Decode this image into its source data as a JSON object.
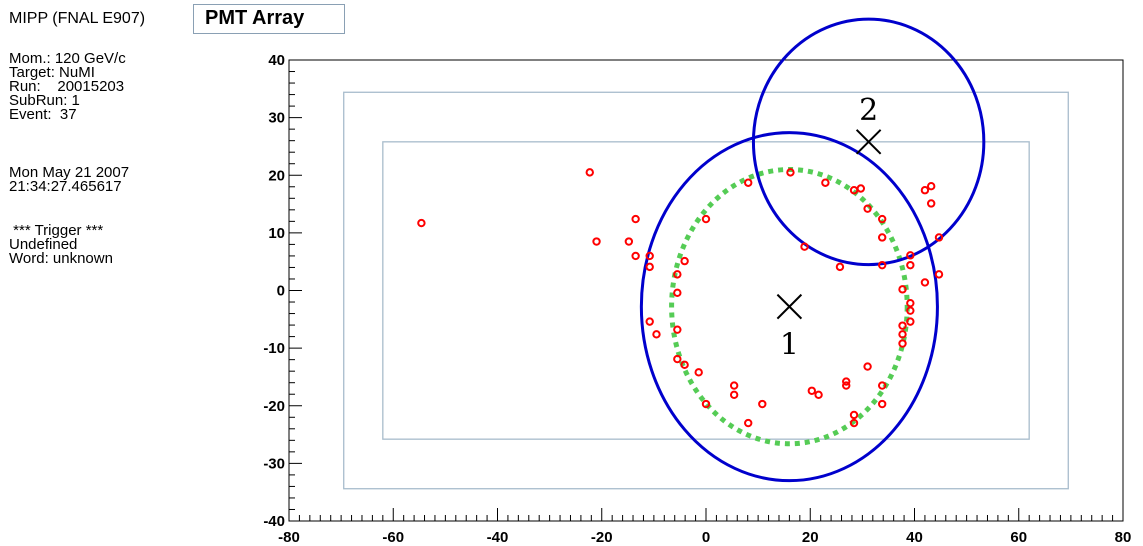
{
  "header": {
    "experiment": "MIPP (FNAL E907)",
    "title": "PMT Array"
  },
  "info": {
    "momentum": "Mom.: 120 GeV/c",
    "target": "Target: NuMI",
    "run": "Run:    20015203",
    "subrun": "SubRun: 1",
    "event": "Event:  37",
    "date": "Mon May 21 2007",
    "time": "21:34:27.465617",
    "trigger_title": " *** Trigger ***",
    "trigger_line1": "Undefined",
    "trigger_line2": "Word: unknown"
  },
  "colors": {
    "hits": "#ff0000",
    "rings": "#0000cc",
    "fit_ring": "#55cc55",
    "boxes": "#a8bccc"
  },
  "chart_data": {
    "type": "scatter",
    "title": "PMT Array",
    "xlim": [
      -80,
      80
    ],
    "ylim": [
      -40,
      40
    ],
    "xticks": [
      -80,
      -60,
      -40,
      -20,
      0,
      20,
      40,
      60,
      80
    ],
    "yticks": [
      -40,
      -30,
      -20,
      -10,
      0,
      10,
      20,
      30,
      40
    ],
    "xtick_labels": [
      "-80",
      "-60",
      "-40",
      "-20",
      "0",
      "20",
      "40",
      "60",
      "80"
    ],
    "ytick_labels": [
      "-40",
      "-30",
      "-20",
      "-10",
      "0",
      "10",
      "20",
      "30",
      "40"
    ],
    "outer_box": {
      "x": [
        -69.5,
        69.5
      ],
      "y": [
        -34.4,
        34.4
      ]
    },
    "inner_box": {
      "x": [
        -62,
        62
      ],
      "y": [
        -25.8,
        25.8
      ]
    },
    "rings": [
      {
        "label": "1",
        "cx": 16,
        "cy": -2.8,
        "rx": 28.4,
        "ry": 30.2
      },
      {
        "label": "2",
        "cx": 31.2,
        "cy": 25.8,
        "rx": 22.1,
        "ry": 21.3
      }
    ],
    "fit_ring": {
      "cx": 16,
      "cy": -2.8,
      "rx": 22.6,
      "ry": 23.8
    },
    "hits": [
      [
        -54.6,
        11.7
      ],
      [
        -22.3,
        20.5
      ],
      [
        -21,
        8.5
      ],
      [
        -14.8,
        8.5
      ],
      [
        -13.5,
        12.4
      ],
      [
        -13.5,
        6
      ],
      [
        -10.8,
        6
      ],
      [
        -10.8,
        4.1
      ],
      [
        -10.8,
        -5.4
      ],
      [
        -9.5,
        -7.6
      ],
      [
        -5.5,
        2.8
      ],
      [
        -5.5,
        -0.4
      ],
      [
        -5.5,
        -6.8
      ],
      [
        -5.5,
        -11.9
      ],
      [
        -4.1,
        5.1
      ],
      [
        -4.1,
        -12.9
      ],
      [
        -1.4,
        -14.2
      ],
      [
        0,
        12.4
      ],
      [
        0,
        -19.7
      ],
      [
        5.4,
        -16.5
      ],
      [
        5.4,
        -18.1
      ],
      [
        8.1,
        -23
      ],
      [
        8.1,
        18.7
      ],
      [
        10.8,
        -19.7
      ],
      [
        16.2,
        20.5
      ],
      [
        18.9,
        7.6
      ],
      [
        20.3,
        -17.4
      ],
      [
        21.6,
        -18.1
      ],
      [
        22.9,
        18.7
      ],
      [
        25.7,
        4.1
      ],
      [
        26.9,
        -16.5
      ],
      [
        26.9,
        -15.8
      ],
      [
        28.4,
        -21.6
      ],
      [
        28.4,
        -23
      ],
      [
        28.4,
        17.4
      ],
      [
        29.7,
        17.7
      ],
      [
        31,
        14.2
      ],
      [
        31,
        -13.2
      ],
      [
        33.8,
        12.4
      ],
      [
        33.8,
        9.2
      ],
      [
        33.8,
        4.4
      ],
      [
        33.8,
        -16.5
      ],
      [
        33.8,
        -19.7
      ],
      [
        37.7,
        0.2
      ],
      [
        37.7,
        -6.1
      ],
      [
        37.7,
        -7.6
      ],
      [
        37.7,
        -9.2
      ],
      [
        39.2,
        6.1
      ],
      [
        39.2,
        4.4
      ],
      [
        39.2,
        -2.2
      ],
      [
        39.2,
        -3.5
      ],
      [
        39.2,
        -5.4
      ],
      [
        42,
        17.4
      ],
      [
        42,
        1.4
      ],
      [
        43.2,
        18.1
      ],
      [
        43.2,
        15.1
      ],
      [
        44.7,
        9.2
      ],
      [
        44.7,
        2.8
      ]
    ]
  }
}
